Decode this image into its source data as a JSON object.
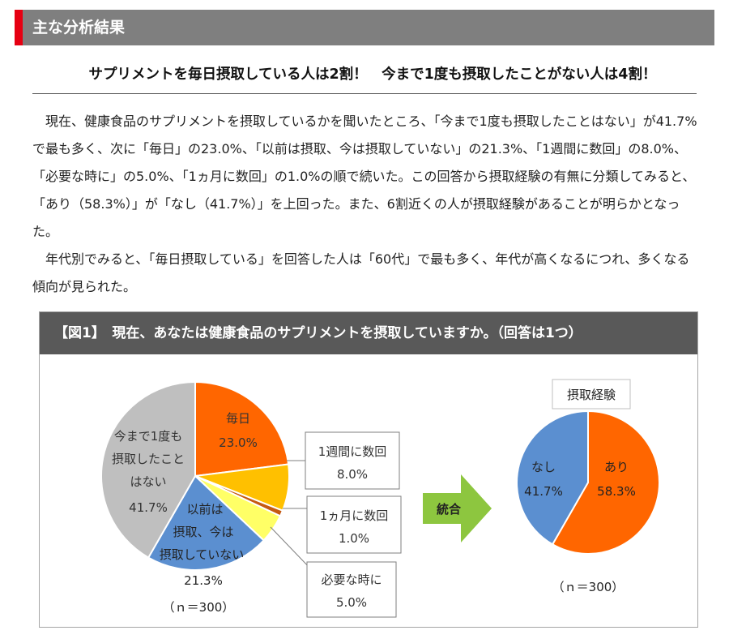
{
  "section": {
    "title": "主な分析結果",
    "accent_color": "#e60012"
  },
  "headline": "サプリメントを毎日摂取している人は2割！　今まで1度も摂取したことがない人は4割！",
  "body": {
    "paragraph_1": "現在、健康食品のサプリメントを摂取しているかを聞いたところ、「今まで1度も摂取したことはない」が41.7%で最も多く、次に「毎日」の23.0%、「以前は摂取、今は摂取していない」の21.3%、「1週間に数回」の8.0%、「必要な時に」の5.0%、「1ヵ月に数回」の1.0%の順で続いた。この回答から摂取経験の有無に分類してみると、「あり（58.3%）」が「なし（41.7%）」を上回った。また、6割近くの人が摂取経験があることが明らかとなった。",
    "paragraph_2": "年代別でみると、「毎日摂取している」を回答した人は「60代」で最も多く、年代が高くなるにつれ、多くなる傾向が見られた。"
  },
  "figure": {
    "title": "【図1】　現在、あなたは健康食品のサプリメントを摂取していますか。（回答は1つ）",
    "merge_label": "統合",
    "merge_arrow_color": "#8dc63f"
  },
  "chart_data": [
    {
      "type": "pie",
      "n_label": "（ｎ＝300）",
      "slices": [
        {
          "label": "毎日",
          "value": 23.0,
          "value_label": "23.0%",
          "color": "#ff6600"
        },
        {
          "label": "1週間に数回",
          "value": 8.0,
          "value_label": "8.0%",
          "color": "#ffc000"
        },
        {
          "label": "1ヵ月に数回",
          "value": 1.0,
          "value_label": "1.0%",
          "color": "#c55a11"
        },
        {
          "label": "必要な時に",
          "value": 5.0,
          "value_label": "5.0%",
          "color": "#ffff66"
        },
        {
          "label": "以前は摂取、今は摂取していない",
          "label_lines": [
            "以前は",
            "摂取、今は",
            "摂取していない"
          ],
          "value": 21.3,
          "value_label": "21.3%",
          "color": "#5b8fd0"
        },
        {
          "label": "今まで1度も摂取したことはない",
          "label_lines": [
            "今まで1度も",
            "摂取したこと",
            "はない"
          ],
          "value": 41.7,
          "value_label": "41.7%",
          "color": "#bfbfbf"
        }
      ]
    },
    {
      "type": "pie",
      "title": "摂取経験",
      "n_label": "（ｎ＝300）",
      "slices": [
        {
          "label": "あり",
          "value": 58.3,
          "value_label": "58.3%",
          "color": "#ff6600"
        },
        {
          "label": "なし",
          "value": 41.7,
          "value_label": "41.7%",
          "color": "#5b8fd0"
        }
      ]
    }
  ]
}
